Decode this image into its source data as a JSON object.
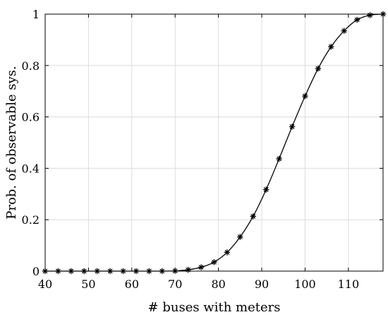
{
  "chart_data": {
    "type": "line",
    "xlabel": "# buses with meters",
    "ylabel": "Prob. of observable sys.",
    "xlim": [
      40,
      118
    ],
    "ylim": [
      0,
      1
    ],
    "x_ticks": [
      "40",
      "50",
      "60",
      "70",
      "80",
      "90",
      "100",
      "110"
    ],
    "y_ticks": [
      "0",
      "0.2",
      "0.4",
      "0.6",
      "0.8",
      "1"
    ],
    "x_tick_values": [
      40,
      50,
      60,
      70,
      80,
      90,
      100,
      110
    ],
    "y_tick_values": [
      0,
      0.2,
      0.4,
      0.6,
      0.8,
      1
    ],
    "grid": true,
    "legend": "none",
    "marker": "asterisk",
    "line_color": "#000000",
    "series": [
      {
        "x": [
          40,
          43,
          46,
          49,
          52,
          55,
          58,
          61,
          64,
          67,
          70,
          73,
          76,
          79,
          82,
          85,
          88,
          91,
          94,
          97,
          100,
          103,
          106,
          109,
          112,
          115,
          118
        ],
        "values": [
          0,
          0,
          0,
          0,
          0,
          0,
          0,
          0,
          0,
          0,
          0.001,
          0.005,
          0.015,
          0.035,
          0.073,
          0.133,
          0.213,
          0.317,
          0.437,
          0.562,
          0.681,
          0.788,
          0.873,
          0.935,
          0.978,
          0.996,
          1.0
        ]
      }
    ]
  }
}
